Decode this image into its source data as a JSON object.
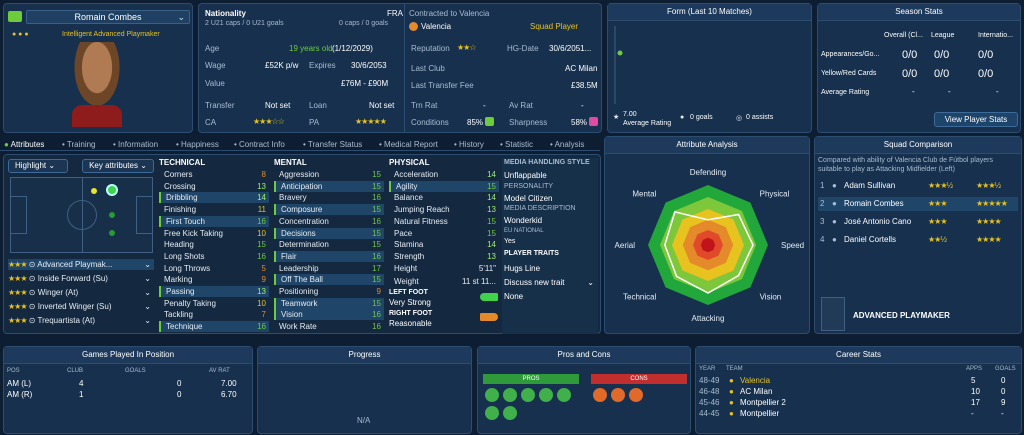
{
  "player": {
    "name": "Romain Combes",
    "role_line": "Intelligent Advanced Playmaker"
  },
  "profile": {
    "nationality_label": "Nationality",
    "nationality_value": "FRA",
    "caps": "2 U21 caps / 0 U21 goals",
    "caps_right": "0 caps / 0 goals",
    "age_label": "Age",
    "age_value": "19 years old",
    "age_date": "(1/12/2029)",
    "wage_label": "Wage",
    "wage_value": "£52K p/w",
    "expires_label": "Expires",
    "expires_value": "30/6/2053",
    "value_label": "Value",
    "value_value": "£76M - £90M",
    "transfer_label": "Transfer",
    "transfer_value": "Not set",
    "loan_label": "Loan",
    "loan_value": "Not set",
    "ca_label": "CA",
    "pa_label": "PA"
  },
  "contract": {
    "title": "Contracted to Valencia",
    "club": "Valencia",
    "status": "Squad Player",
    "reputation_label": "Reputation",
    "hg_label": "HG-Date",
    "hg_value": "30/6/2051...",
    "last_club_label": "Last Club",
    "last_club_value": "AC Milan",
    "fee_label": "Last Transfer Fee",
    "fee_value": "£38.5M",
    "trn_label": "Trn Rat",
    "trn_value": "-",
    "av_label": "Av Rat",
    "av_value": "-",
    "cond_label": "Conditions",
    "cond_value": "85%",
    "sharp_label": "Sharpness",
    "sharp_value": "58%"
  },
  "form": {
    "title": "Form (Last 10 Matches)",
    "avg_value": "7.00",
    "avg_label": "Average Rating",
    "goals": "0 goals",
    "assists": "0 assists",
    "ratings": [
      7.0
    ]
  },
  "season": {
    "title": "Season Stats",
    "cols": [
      "Overall (Cl...",
      "League",
      "Internatio..."
    ],
    "rows": [
      {
        "label": "Appearances/Go...",
        "v": [
          "0/0",
          "0/0",
          "0/0"
        ]
      },
      {
        "label": "Yellow/Red Cards",
        "v": [
          "0/0",
          "0/0",
          "0/0"
        ]
      },
      {
        "label": "Average Rating",
        "v": [
          "-",
          "-",
          "-"
        ]
      }
    ],
    "button": "View Player Stats"
  },
  "tabs": [
    "Attributes",
    "Training",
    "Information",
    "Happiness",
    "Contract Info",
    "Transfer Status",
    "Medical Report",
    "History",
    "Statistic",
    "Analysis"
  ],
  "highlight": {
    "label": "Highlight",
    "key": "Key attributes"
  },
  "roles": [
    {
      "stars": "★★★",
      "name": "Advanced Playmak..."
    },
    {
      "stars": "★★★",
      "name": "Inside Forward (Su)"
    },
    {
      "stars": "★★★",
      "name": "Winger (At)"
    },
    {
      "stars": "★★★",
      "name": "Inverted Winger (Su)"
    },
    {
      "stars": "★★★",
      "name": "Trequartista (At)"
    }
  ],
  "technical": {
    "title": "TECHNICAL",
    "items": [
      {
        "n": "Corners",
        "v": "8"
      },
      {
        "n": "Crossing",
        "v": "13"
      },
      {
        "n": "Dribbling",
        "v": "14"
      },
      {
        "n": "Finishing",
        "v": "11"
      },
      {
        "n": "First Touch",
        "v": "16"
      },
      {
        "n": "Free Kick Taking",
        "v": "10"
      },
      {
        "n": "Heading",
        "v": "15"
      },
      {
        "n": "Long Shots",
        "v": "16"
      },
      {
        "n": "Long Throws",
        "v": "5"
      },
      {
        "n": "Marking",
        "v": "9"
      },
      {
        "n": "Passing",
        "v": "13"
      },
      {
        "n": "Penalty Taking",
        "v": "10"
      },
      {
        "n": "Tackling",
        "v": "7"
      },
      {
        "n": "Technique",
        "v": "16"
      }
    ]
  },
  "mental": {
    "title": "MENTAL",
    "items": [
      {
        "n": "Aggression",
        "v": "15"
      },
      {
        "n": "Anticipation",
        "v": "15"
      },
      {
        "n": "Bravery",
        "v": "16"
      },
      {
        "n": "Composure",
        "v": "15"
      },
      {
        "n": "Concentration",
        "v": "16"
      },
      {
        "n": "Decisions",
        "v": "15"
      },
      {
        "n": "Determination",
        "v": "15"
      },
      {
        "n": "Flair",
        "v": "16"
      },
      {
        "n": "Leadership",
        "v": "17"
      },
      {
        "n": "Off The Ball",
        "v": "15"
      },
      {
        "n": "Positioning",
        "v": "9"
      },
      {
        "n": "Teamwork",
        "v": "15"
      },
      {
        "n": "Vision",
        "v": "16"
      },
      {
        "n": "Work Rate",
        "v": "16"
      }
    ]
  },
  "physical": {
    "title": "PHYSICAL",
    "items": [
      {
        "n": "Acceleration",
        "v": "14"
      },
      {
        "n": "Agility",
        "v": "15"
      },
      {
        "n": "Balance",
        "v": "14"
      },
      {
        "n": "Jumping Reach",
        "v": "13"
      },
      {
        "n": "Natural Fitness",
        "v": "15"
      },
      {
        "n": "Pace",
        "v": "15"
      },
      {
        "n": "Stamina",
        "v": "14"
      },
      {
        "n": "Strength",
        "v": "13"
      }
    ],
    "height_label": "Height",
    "height_value": "5'11\"",
    "weight_label": "Weight",
    "weight_value": "11 st 11...",
    "left_foot_label": "LEFT FOOT",
    "left_foot_value": "Very Strong",
    "right_foot_label": "RIGHT FOOT",
    "right_foot_value": "Reasonable"
  },
  "media": {
    "title": "MEDIA HANDLING STYLE",
    "style": "Unflappable",
    "personality_label": "PERSONALITY",
    "personality": "Model Citizen",
    "desc_label": "MEDIA DESCRIPTION",
    "desc": "Wonderkid",
    "eu_label": "EU NATIONAL",
    "eu": "Yes",
    "traits_label": "PLAYER TRAITS",
    "trait": "Hugs Line",
    "discuss": "Discuss new trait",
    "none": "None"
  },
  "analysis": {
    "title": "Attribute Analysis",
    "axes": [
      "Defending",
      "Physical",
      "Speed",
      "Vision",
      "Attacking",
      "Technical",
      "Aerial",
      "Mental"
    ],
    "values": [
      0.42,
      0.72,
      0.75,
      0.72,
      0.8,
      0.74,
      0.72,
      0.78
    ]
  },
  "squad": {
    "title": "Squad Comparison",
    "desc": "Compared with ability of Valencia Club de Fútbol players suitable to play as Attacking Midfielder (Left)",
    "players": [
      {
        "rank": "1",
        "name": "Adam Sullivan",
        "ca": "★★★½",
        "pa": "★★★½"
      },
      {
        "rank": "2",
        "name": "Romain Combes",
        "ca": "★★★",
        "pa": "★★★★★"
      },
      {
        "rank": "3",
        "name": "José Antonio Cano",
        "ca": "★★★",
        "pa": "★★★★"
      },
      {
        "rank": "4",
        "name": "Daniel Cortells",
        "ca": "★★½",
        "pa": "★★★★"
      }
    ],
    "role_title": "ADVANCED PLAYMAKER"
  },
  "games": {
    "title": "Games Played In Position",
    "cols": [
      "POS",
      "CLUB",
      "GOALS",
      "AV RAT"
    ],
    "rows": [
      {
        "pos": "AM (L)",
        "club": "4",
        "goals": "0",
        "rat": "7.00"
      },
      {
        "pos": "AM (R)",
        "club": "1",
        "goals": "0",
        "rat": "6.70"
      }
    ]
  },
  "progress": {
    "title": "Progress",
    "na": "N/A"
  },
  "pros": {
    "title": "Pros and Cons",
    "pros_label": "PROS",
    "cons_label": "CONS"
  },
  "career": {
    "title": "Career Stats",
    "cols": [
      "YEAR",
      "TEAM",
      "APPS",
      "GOALS"
    ],
    "rows": [
      {
        "year": "48-49",
        "team": "Valencia",
        "apps": "5",
        "goals": "0"
      },
      {
        "year": "46-48",
        "team": "AC Milan",
        "apps": "10",
        "goals": "0"
      },
      {
        "year": "45-46",
        "team": "Montpellier 2",
        "apps": "17",
        "goals": "9"
      },
      {
        "year": "44-45",
        "team": "Montpellier",
        "apps": "-",
        "goals": "-"
      }
    ]
  },
  "colors": {
    "accent": "#6ecb3c",
    "panel": "#16304d",
    "star": "#e8c21f"
  }
}
